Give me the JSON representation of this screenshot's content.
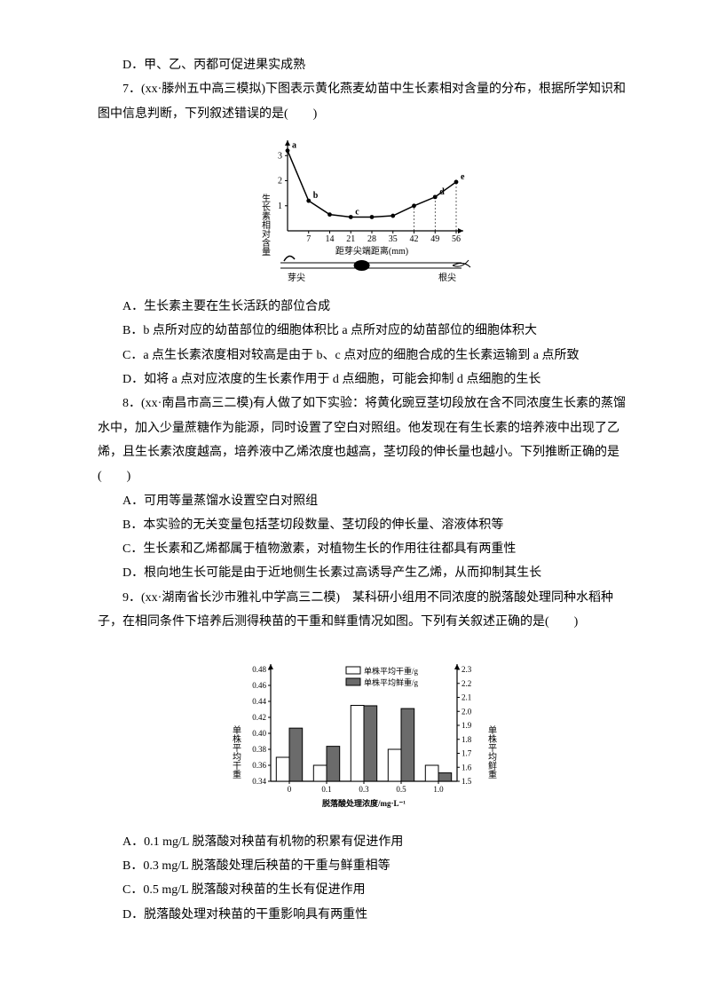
{
  "d_option": "D．甲、乙、丙都可促进果实成熟",
  "q7": {
    "stem": "7．(xx·滕州五中高三模拟)下图表示黄化燕麦幼苗中生长素相对含量的分布，根据所学知识和图中信息判断，下列叙述错误的是(　　)",
    "A": "A．生长素主要在生长活跃的部位合成",
    "B": "B．b 点所对应的幼苗部位的细胞体积比 a 点所对应的幼苗部位的细胞体积大",
    "C": "C．a 点生长素浓度相对较高是由于 b、c 点对应的细胞合成的生长素运输到 a 点所致",
    "D": "D．如将 a 点对应浓度的生长素作用于 d 点细胞，可能会抑制 d 点细胞的生长",
    "chart": {
      "type": "line",
      "ylabel": "生长素相对含量",
      "xlabel": "距芽尖端距离(mm)",
      "xticks": [
        "7",
        "14",
        "21",
        "28",
        "35",
        "42",
        "49",
        "56"
      ],
      "yticks": [
        "1",
        "2",
        "3"
      ],
      "points": [
        {
          "x": 0,
          "y": 3.2,
          "l": "a"
        },
        {
          "x": 7,
          "y": 1.2,
          "l": "b"
        },
        {
          "x": 14,
          "y": 0.65,
          "l": ""
        },
        {
          "x": 21,
          "y": 0.55,
          "l": "c"
        },
        {
          "x": 28,
          "y": 0.55,
          "l": ""
        },
        {
          "x": 35,
          "y": 0.6,
          "l": ""
        },
        {
          "x": 42,
          "y": 1.0,
          "l": ""
        },
        {
          "x": 49,
          "y": 1.35,
          "l": "d"
        },
        {
          "x": 56,
          "y": 1.95,
          "l": "e"
        }
      ],
      "label_bud": "芽尖",
      "label_root": "根尖",
      "font_axis": 10,
      "color_border": "#000"
    }
  },
  "q8": {
    "stem": "8．(xx·南昌市高三二模)有人做了如下实验：将黄化豌豆茎切段放在含不同浓度生长素的蒸馏水中，加入少量蔗糖作为能源，同时设置了空白对照组。他发现在有生长素的培养液中出现了乙烯，且生长素浓度越高，培养液中乙烯浓度也越高，茎切段的伸长量也越小。下列推断正确的是(　　)",
    "A": "A．可用等量蒸馏水设置空白对照组",
    "B": "B．本实验的无关变量包括茎切段数量、茎切段的伸长量、溶液体积等",
    "C": "C．生长素和乙烯都属于植物激素，对植物生长的作用往往都具有两重性",
    "D": "D．根向地生长可能是由于近地侧生长素过高诱导产生乙烯，从而抑制其生长"
  },
  "q9": {
    "stem": "9．(xx·湖南省长沙市雅礼中学高三二模)　某科研小组用不同浓度的脱落酸处理同种水稻种子，在相同条件下培养后测得秧苗的干重和鲜重情况如图。下列有关叙述正确的是(　　)",
    "A": "A．0.1 mg/L 脱落酸对秧苗有机物的积累有促进作用",
    "B": "B．0.3 mg/L 脱落酸处理后秧苗的干重与鲜重相等",
    "C": "C．0.5 mg/L 脱落酸对秧苗的生长有促进作用",
    "D": "D．脱落酸处理对秧苗的干重影响具有两重性",
    "chart": {
      "type": "bar",
      "legend_open": "单株平均干重/g",
      "legend_fill": "单株平均鲜重/g",
      "yl_label": "单株平均干重",
      "yr_label": "单株平均鲜重",
      "xlabel": "脱落酸处理浓度/mg·L⁻¹",
      "categories": [
        "0",
        "0.1",
        "0.3",
        "0.5",
        "1.0"
      ],
      "yl_ticks": [
        "0.34",
        "0.36",
        "0.38",
        "0.40",
        "0.42",
        "0.44",
        "0.46",
        "0.48"
      ],
      "yr_ticks": [
        "1.5",
        "1.6",
        "1.7",
        "1.8",
        "1.9",
        "2.0",
        "2.1",
        "2.2",
        "2.3"
      ],
      "yl_lim": [
        0.34,
        0.48
      ],
      "yr_lim": [
        1.5,
        2.3
      ],
      "dry": [
        0.37,
        0.36,
        0.435,
        0.38,
        0.36
      ],
      "fresh": [
        1.88,
        1.75,
        2.04,
        2.02,
        1.56
      ],
      "bar_width": 0.35,
      "font_axis": 9
    }
  }
}
